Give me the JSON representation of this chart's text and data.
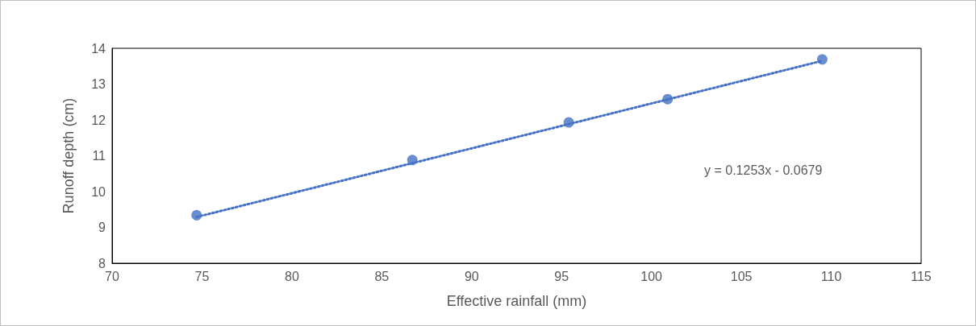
{
  "chart_data": {
    "type": "scatter",
    "xlabel": "Effective rainfall (mm)",
    "ylabel": "Runoff depth (cm)",
    "xlim": [
      70,
      115
    ],
    "xticks": [
      70,
      75,
      80,
      85,
      90,
      95,
      100,
      105,
      110,
      115
    ],
    "ylim": [
      8,
      14
    ],
    "yticks": [
      8,
      9,
      10,
      11,
      12,
      13,
      14
    ],
    "grid": false,
    "marker": "circle",
    "annotations": [
      "y = 0.1253x - 0.0679"
    ],
    "series": [
      {
        "type": "scatter",
        "color": "#4472c4",
        "x": [
          74.7,
          86.7,
          95.4,
          100.9,
          109.5
        ],
        "values": [
          9.34,
          10.88,
          11.93,
          12.58,
          13.69
        ]
      },
      {
        "type": "line",
        "color": "#4472c4",
        "marker": "none",
        "line_style": "dotted",
        "x": [
          74.7,
          109.5
        ],
        "values": [
          9.29,
          13.65
        ]
      }
    ]
  }
}
